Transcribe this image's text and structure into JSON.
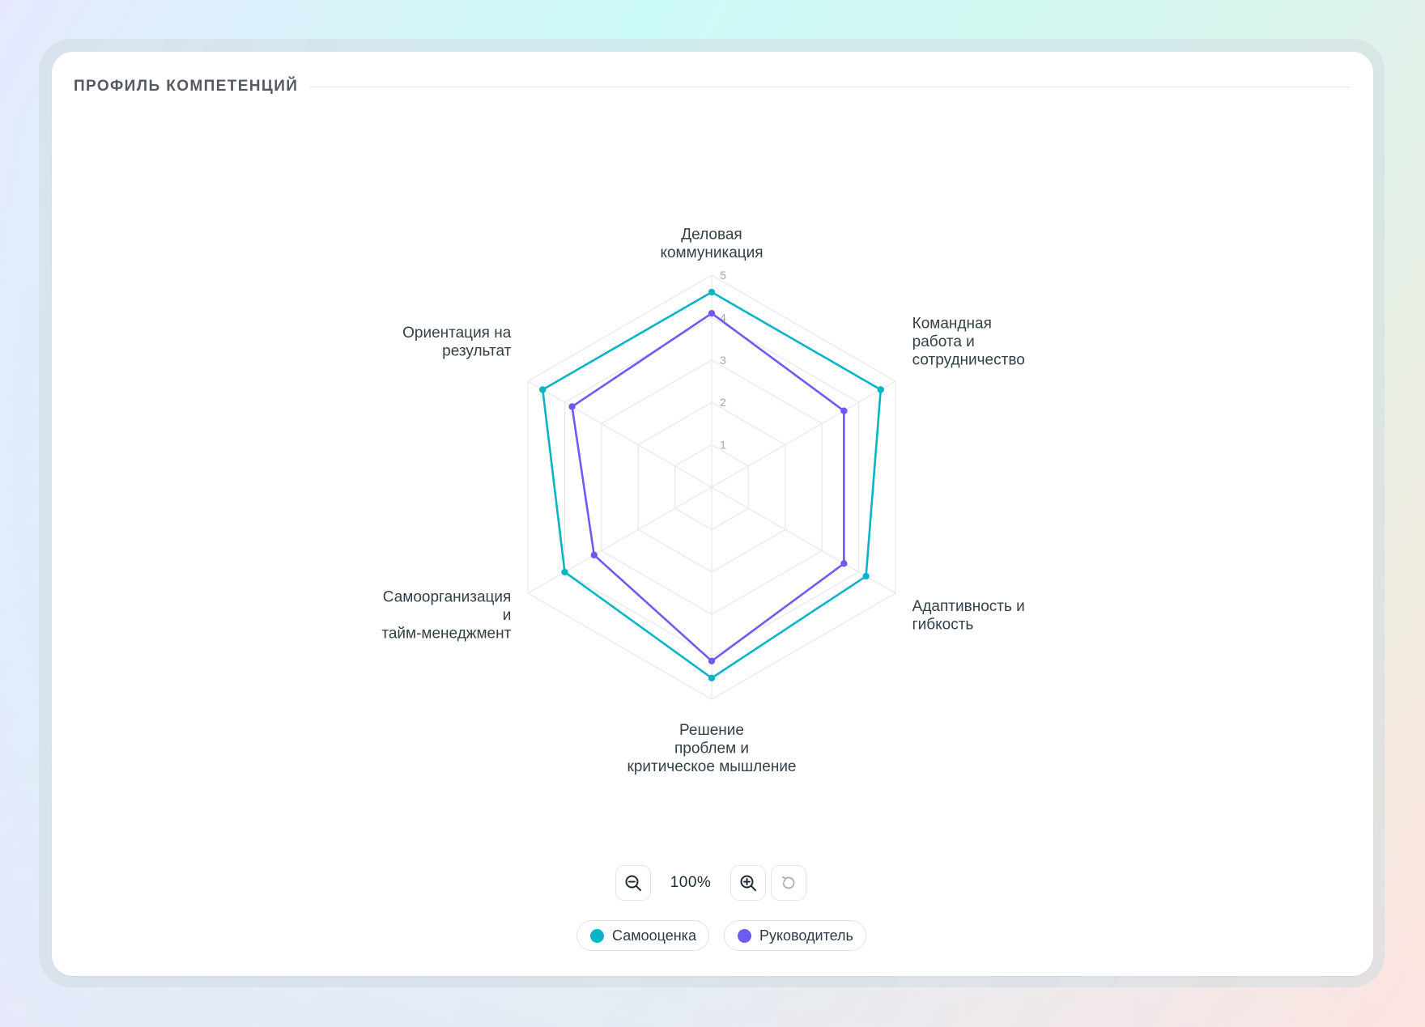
{
  "panel": {
    "title": "ПРОФИЛЬ КОМПЕТЕНЦИЙ"
  },
  "chart_data": {
    "type": "radar",
    "axes": [
      [
        "Деловая",
        "коммуникация"
      ],
      [
        "Командная",
        "работа и",
        "сотрудничество"
      ],
      [
        "Адаптивность и",
        "гибкость"
      ],
      [
        "Решение",
        "проблем и",
        "критическое мышление"
      ],
      [
        "Самоорганизация",
        "и",
        "тайм-менеджмент"
      ],
      [
        "Ориентация на",
        "результат"
      ]
    ],
    "ring_labels": [
      "1",
      "2",
      "3",
      "4",
      "5"
    ],
    "range": [
      0,
      5
    ],
    "grid": true,
    "series": [
      {
        "name": "Самооценка",
        "color": "#0ab4c7",
        "values": [
          4.6,
          4.6,
          4.2,
          4.5,
          4.0,
          4.6
        ]
      },
      {
        "name": "Руководитель",
        "color": "#6c5cf2",
        "values": [
          4.1,
          3.6,
          3.6,
          4.1,
          3.2,
          3.8
        ]
      }
    ],
    "legend": "bottom"
  },
  "controls": {
    "zoom_value": "100%",
    "zoom_out_icon": "zoom-out-icon",
    "zoom_in_icon": "zoom-in-icon",
    "reset_icon": "reset-icon"
  }
}
